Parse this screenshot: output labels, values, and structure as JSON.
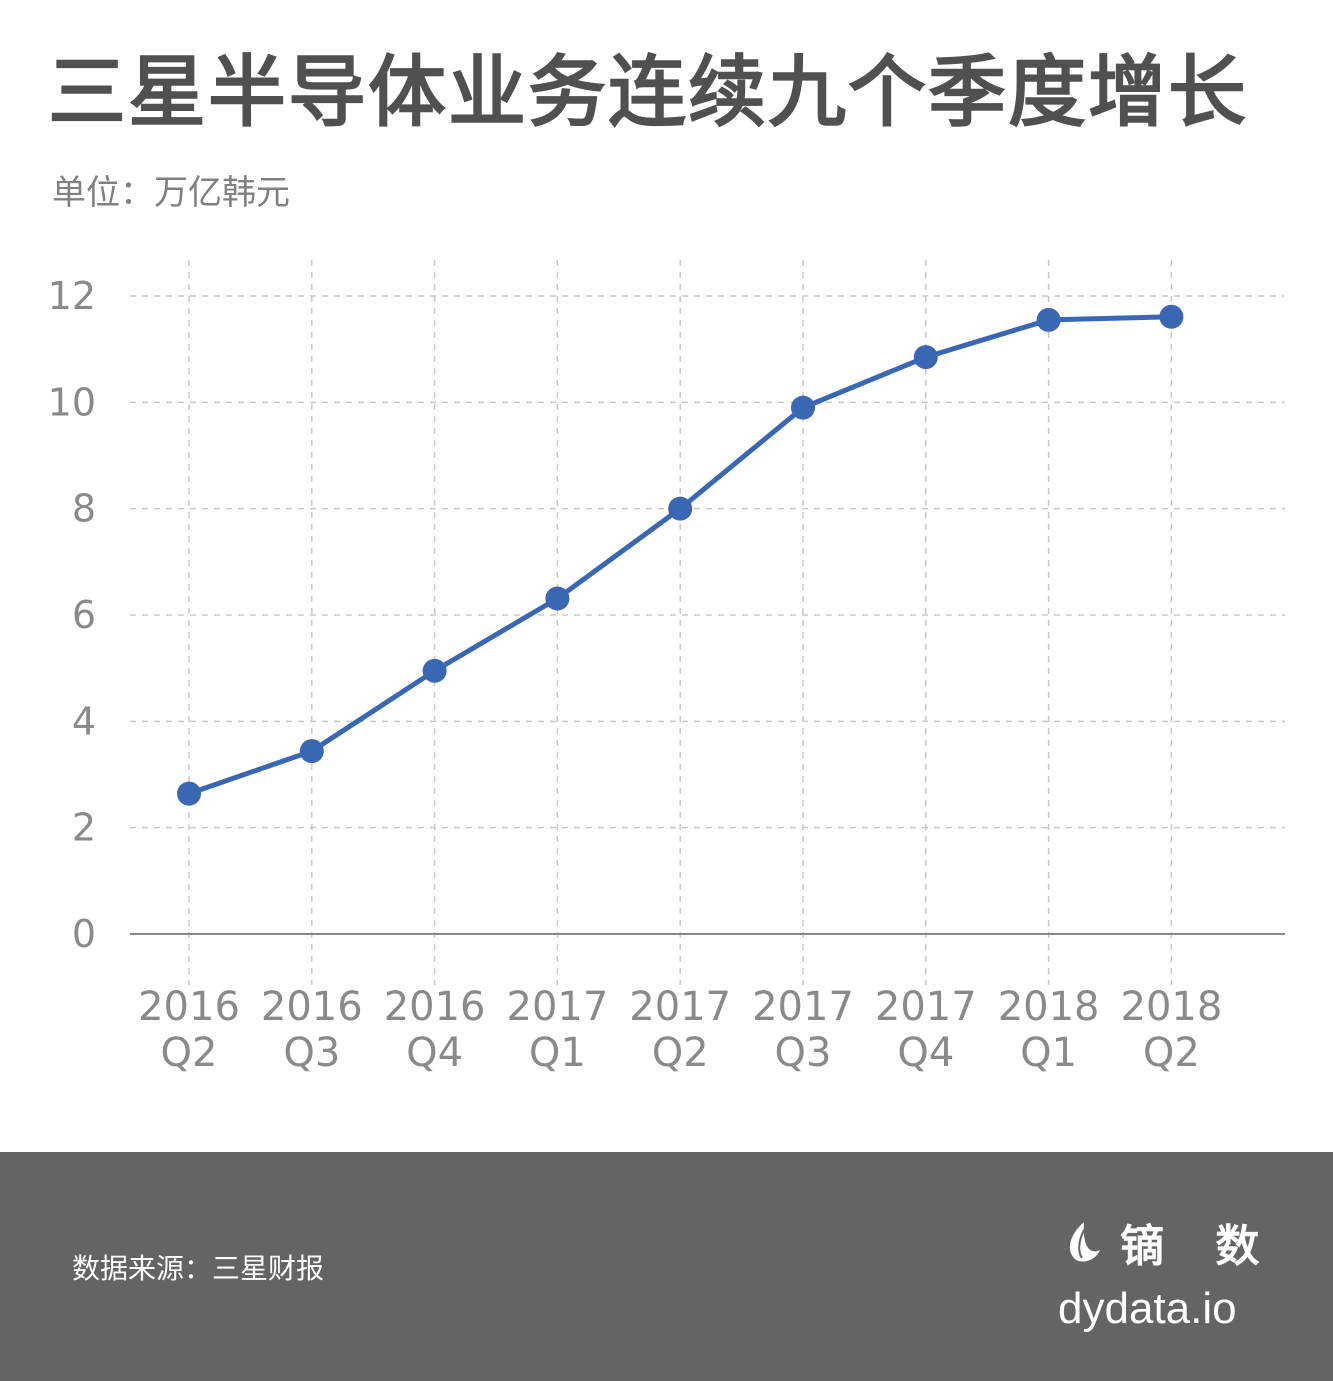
{
  "title": "三星半导体业务连续九个季度增长",
  "unit_label": "单位：万亿韩元",
  "footer": {
    "source": "数据来源：三星财报",
    "brand_name": "镝 数",
    "brand_url": "dydata.io",
    "brand_icon": "leaf-logo-icon"
  },
  "colors": {
    "line": "#3a67b4",
    "grid": "#c8c8c8",
    "footer_bg": "#646464"
  },
  "chart_data": {
    "type": "line",
    "categories": [
      [
        "2016",
        "Q2"
      ],
      [
        "2016",
        "Q3"
      ],
      [
        "2016",
        "Q4"
      ],
      [
        "2017",
        "Q1"
      ],
      [
        "2017",
        "Q2"
      ],
      [
        "2017",
        "Q3"
      ],
      [
        "2017",
        "Q4"
      ],
      [
        "2018",
        "Q1"
      ],
      [
        "2018",
        "Q2"
      ]
    ],
    "series": [
      {
        "values": [
          2.64,
          3.44,
          4.95,
          6.31,
          8.0,
          9.9,
          10.85,
          11.55,
          11.61
        ]
      }
    ],
    "ylim": [
      0,
      12
    ],
    "yticks": [
      0,
      2,
      4,
      6,
      8,
      10,
      12
    ],
    "grid": true,
    "xlabel": "",
    "ylabel": ""
  }
}
